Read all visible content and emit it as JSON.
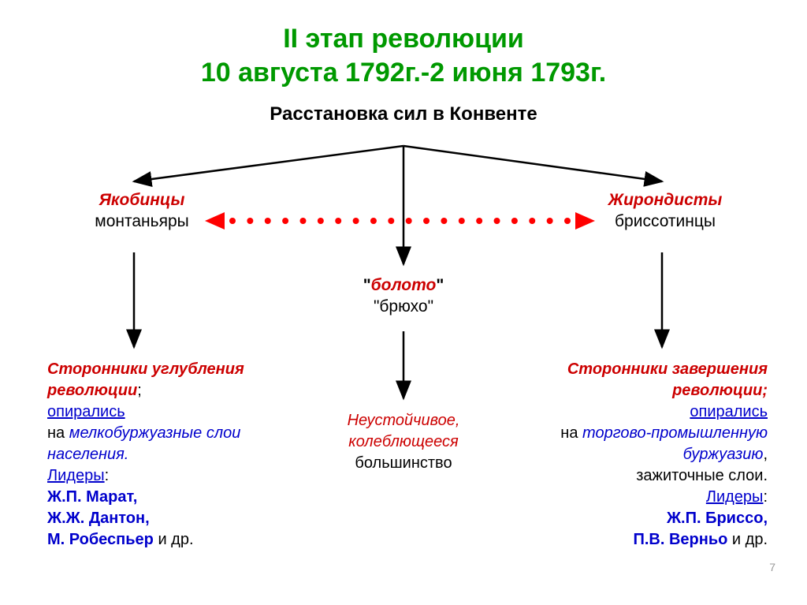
{
  "colors": {
    "title": "#009900",
    "red": "#cc0000",
    "blue": "#0000cc",
    "black": "#000000",
    "dot": "#ff0000"
  },
  "title": {
    "line1": "II этап революции",
    "line2": "10 августа 1792г.-2 июня 1793г."
  },
  "subtitle": "Расстановка сил в Конвенте",
  "left": {
    "head1": "Якобинцы",
    "head2": "монтаньяры",
    "desc1": "Сторонники углубления",
    "desc1b": " революции",
    "desc1c": ";",
    "desc2a": "опирались",
    "desc2b": "на ",
    "desc2c": "мелкобуржуазные слои населения.",
    "leadersLabel": "Лидеры",
    "leaders": "Ж.П. Марат,\nЖ.Ж. Дантон,\nМ. Робеспьер",
    "etc": " и др."
  },
  "center": {
    "head1a": "\"",
    "head1b": "болото",
    "head1c": "\"",
    "head2": "\"брюхо\"",
    "desc1": "Неустойчивое,",
    "desc2": "колеблющееся",
    "desc3": "большинство"
  },
  "right": {
    "head1": "Жирондисты",
    "head2": "бриссотинцы",
    "desc1": "Сторонники завершения",
    "desc1b": "революции",
    "desc1c": ";",
    "desc2a": "опирались",
    "desc2b": "на ",
    "desc2c": "торгово-промышленную буржуазию",
    "desc2d": ",",
    "desc3": "зажиточные слои.",
    "leadersLabel": "Лидеры",
    "leaders": "Ж.П. Бриссо,\nП.В. Верньо",
    "etc": " и др."
  },
  "pageNumber": "7",
  "arrows": {
    "stroke": "#000000",
    "strokeWidth": 2,
    "dotRadius": 4,
    "dotCount": 20,
    "triColor": "#ff0000"
  }
}
